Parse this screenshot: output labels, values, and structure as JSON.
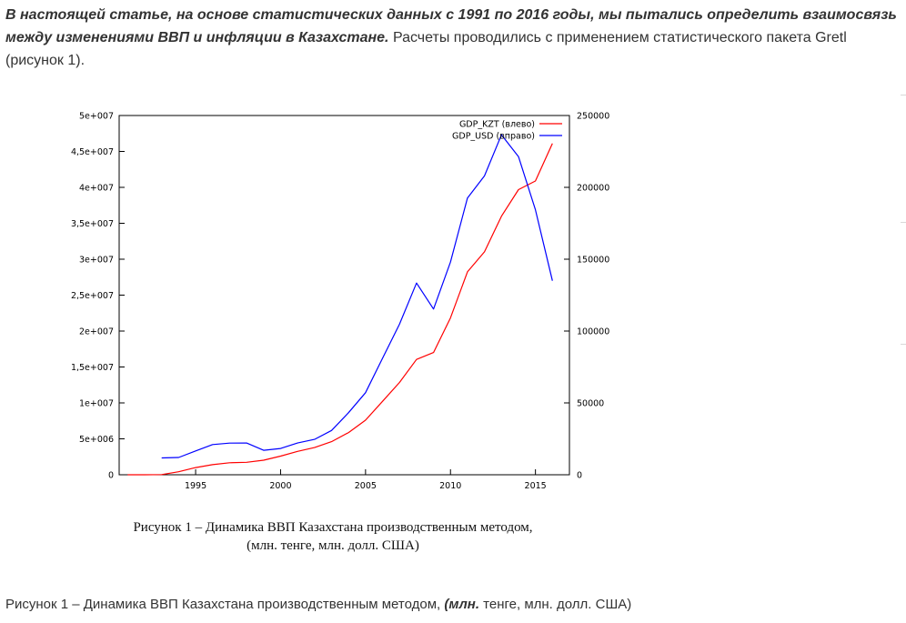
{
  "intro": {
    "bold_text": "В настоящей статье, на основе статистических данных с 1991 по 2016 годы, мы пытались определить взаимосвязь между изменениями ВВП и инфляции в Казахстане.",
    "normal_text": " Расчеты проводились с применением статистического пакета Gretl (рисунок 1)."
  },
  "figure_caption": {
    "line1": "Рисунок 1 – Динамика ВВП Казахстана производственным методом,",
    "line2": "(млн. тенге, млн. долл. США)"
  },
  "bottom_caption": {
    "part1": "Рисунок 1 – Динамика ВВП Казахстана производственным методом, ",
    "part2_bold": "(млн.",
    "part3": " тенге, млн. долл. США)"
  },
  "chart_data": {
    "type": "line",
    "title": "",
    "xlabel": "",
    "ylabel": "",
    "xlim": [
      1990.5,
      2017.0
    ],
    "ylim_left": [
      0,
      50000000
    ],
    "ylim_right": [
      0,
      250000
    ],
    "x_ticks": [
      1995,
      2000,
      2005,
      2010,
      2015
    ],
    "y_left_ticks": [
      0,
      5000000,
      10000000,
      15000000,
      20000000,
      25000000,
      30000000,
      35000000,
      40000000,
      45000000,
      50000000
    ],
    "y_left_tick_labels": [
      "0",
      "5e+006",
      "1e+007",
      "1,5e+007",
      "2e+007",
      "2,5e+007",
      "3e+007",
      "3,5e+007",
      "4e+007",
      "4,5e+007",
      "5e+007"
    ],
    "y_right_ticks": [
      0,
      50000,
      100000,
      150000,
      200000,
      250000
    ],
    "y_right_tick_labels": [
      "0",
      "50000",
      "100000",
      "150000",
      "200000",
      "250000"
    ],
    "legend_position": "top-right",
    "grid": false,
    "series": [
      {
        "name": "GDP_KZT (влево)",
        "axis": "left",
        "color": "#ff0000",
        "x": [
          1991,
          1992,
          1993,
          1994,
          1995,
          1996,
          1997,
          1998,
          1999,
          2000,
          2001,
          2002,
          2003,
          2004,
          2005,
          2006,
          2007,
          2008,
          2009,
          2010,
          2011,
          2012,
          2013,
          2014,
          2015,
          2016
        ],
        "values": [
          0,
          0,
          30000,
          420000,
          1000000,
          1400000,
          1670000,
          1730000,
          2020000,
          2600000,
          3250000,
          3780000,
          4610000,
          5870000,
          7590000,
          10210000,
          12850000,
          16050000,
          17010000,
          21820000,
          28240000,
          31020000,
          35990000,
          39680000,
          40880000,
          46100000
        ]
      },
      {
        "name": "GDP_USD (вправо)",
        "axis": "right",
        "color": "#0000ff",
        "x": [
          1993,
          1994,
          1995,
          1996,
          1997,
          1998,
          1999,
          2000,
          2001,
          2002,
          2003,
          2004,
          2005,
          2006,
          2007,
          2008,
          2009,
          2010,
          2011,
          2012,
          2013,
          2014,
          2015,
          2016
        ],
        "values": [
          11700,
          12000,
          16600,
          21000,
          22000,
          22100,
          17000,
          18300,
          22100,
          24600,
          30800,
          43200,
          57100,
          81000,
          104800,
          133400,
          115300,
          148000,
          192600,
          208000,
          236600,
          221400,
          184400,
          135000
        ]
      }
    ]
  }
}
